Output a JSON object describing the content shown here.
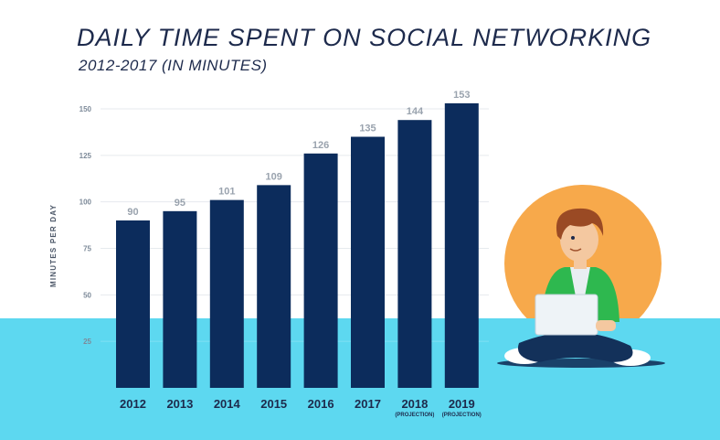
{
  "colors": {
    "bar": "#0c2c5c",
    "bar_top": "#0a2650",
    "sea": "#5dd8f0",
    "sun": "#f7a94b",
    "text": "#1d2a4c"
  },
  "chart_data": {
    "type": "bar",
    "title": "DAILY TIME SPENT ON SOCIAL NETWORKING",
    "subtitle": "2012-2017 (IN MINUTES)",
    "xlabel": "",
    "ylabel": "MINUTES PER DAY",
    "ylim": [
      0,
      150
    ],
    "yticks": [
      25,
      50,
      75,
      100,
      125,
      150
    ],
    "grid": true,
    "categories": [
      "2012",
      "2013",
      "2014",
      "2015",
      "2016",
      "2017",
      "2018",
      "2019"
    ],
    "values": [
      90,
      95,
      101,
      109,
      126,
      135,
      144,
      153
    ],
    "notes": [
      "",
      "",
      "",
      "",
      "",
      "",
      "(PROJECTION)",
      "(PROJECTION)"
    ]
  },
  "illustration": {
    "description_icon": "person-with-laptop-icon"
  }
}
